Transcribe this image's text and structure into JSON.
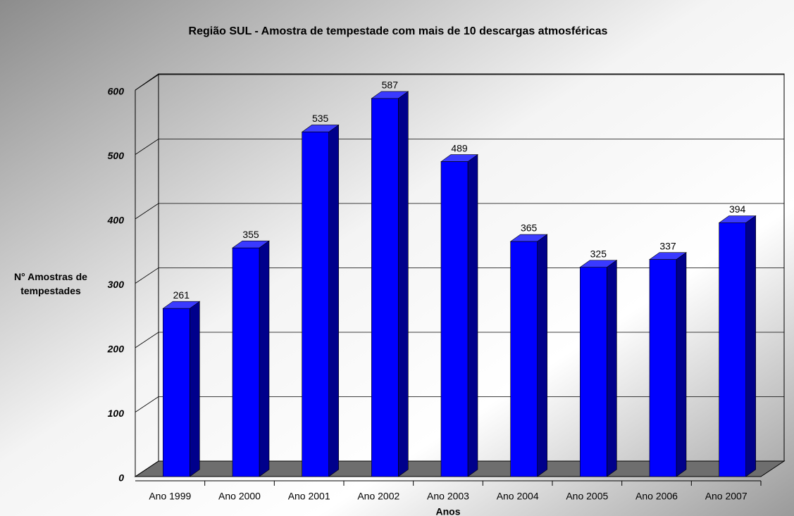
{
  "chart_data": {
    "type": "bar",
    "title": "Região SUL - Amostra de tempestade com mais de 10 descargas atmosféricas",
    "xlabel": "Anos",
    "ylabel": "N° Amostras de tempestades",
    "categories": [
      "Ano 1999",
      "Ano 2000",
      "Ano 2001",
      "Ano 2002",
      "Ano 2003",
      "Ano 2004",
      "Ano 2005",
      "Ano 2006",
      "Ano 2007"
    ],
    "values": [
      261,
      355,
      535,
      587,
      489,
      365,
      325,
      337,
      394
    ],
    "color": "#0000ff",
    "ylim": [
      0,
      600
    ],
    "yticks": [
      0,
      100,
      200,
      300,
      400,
      500,
      600
    ],
    "grid": true
  }
}
